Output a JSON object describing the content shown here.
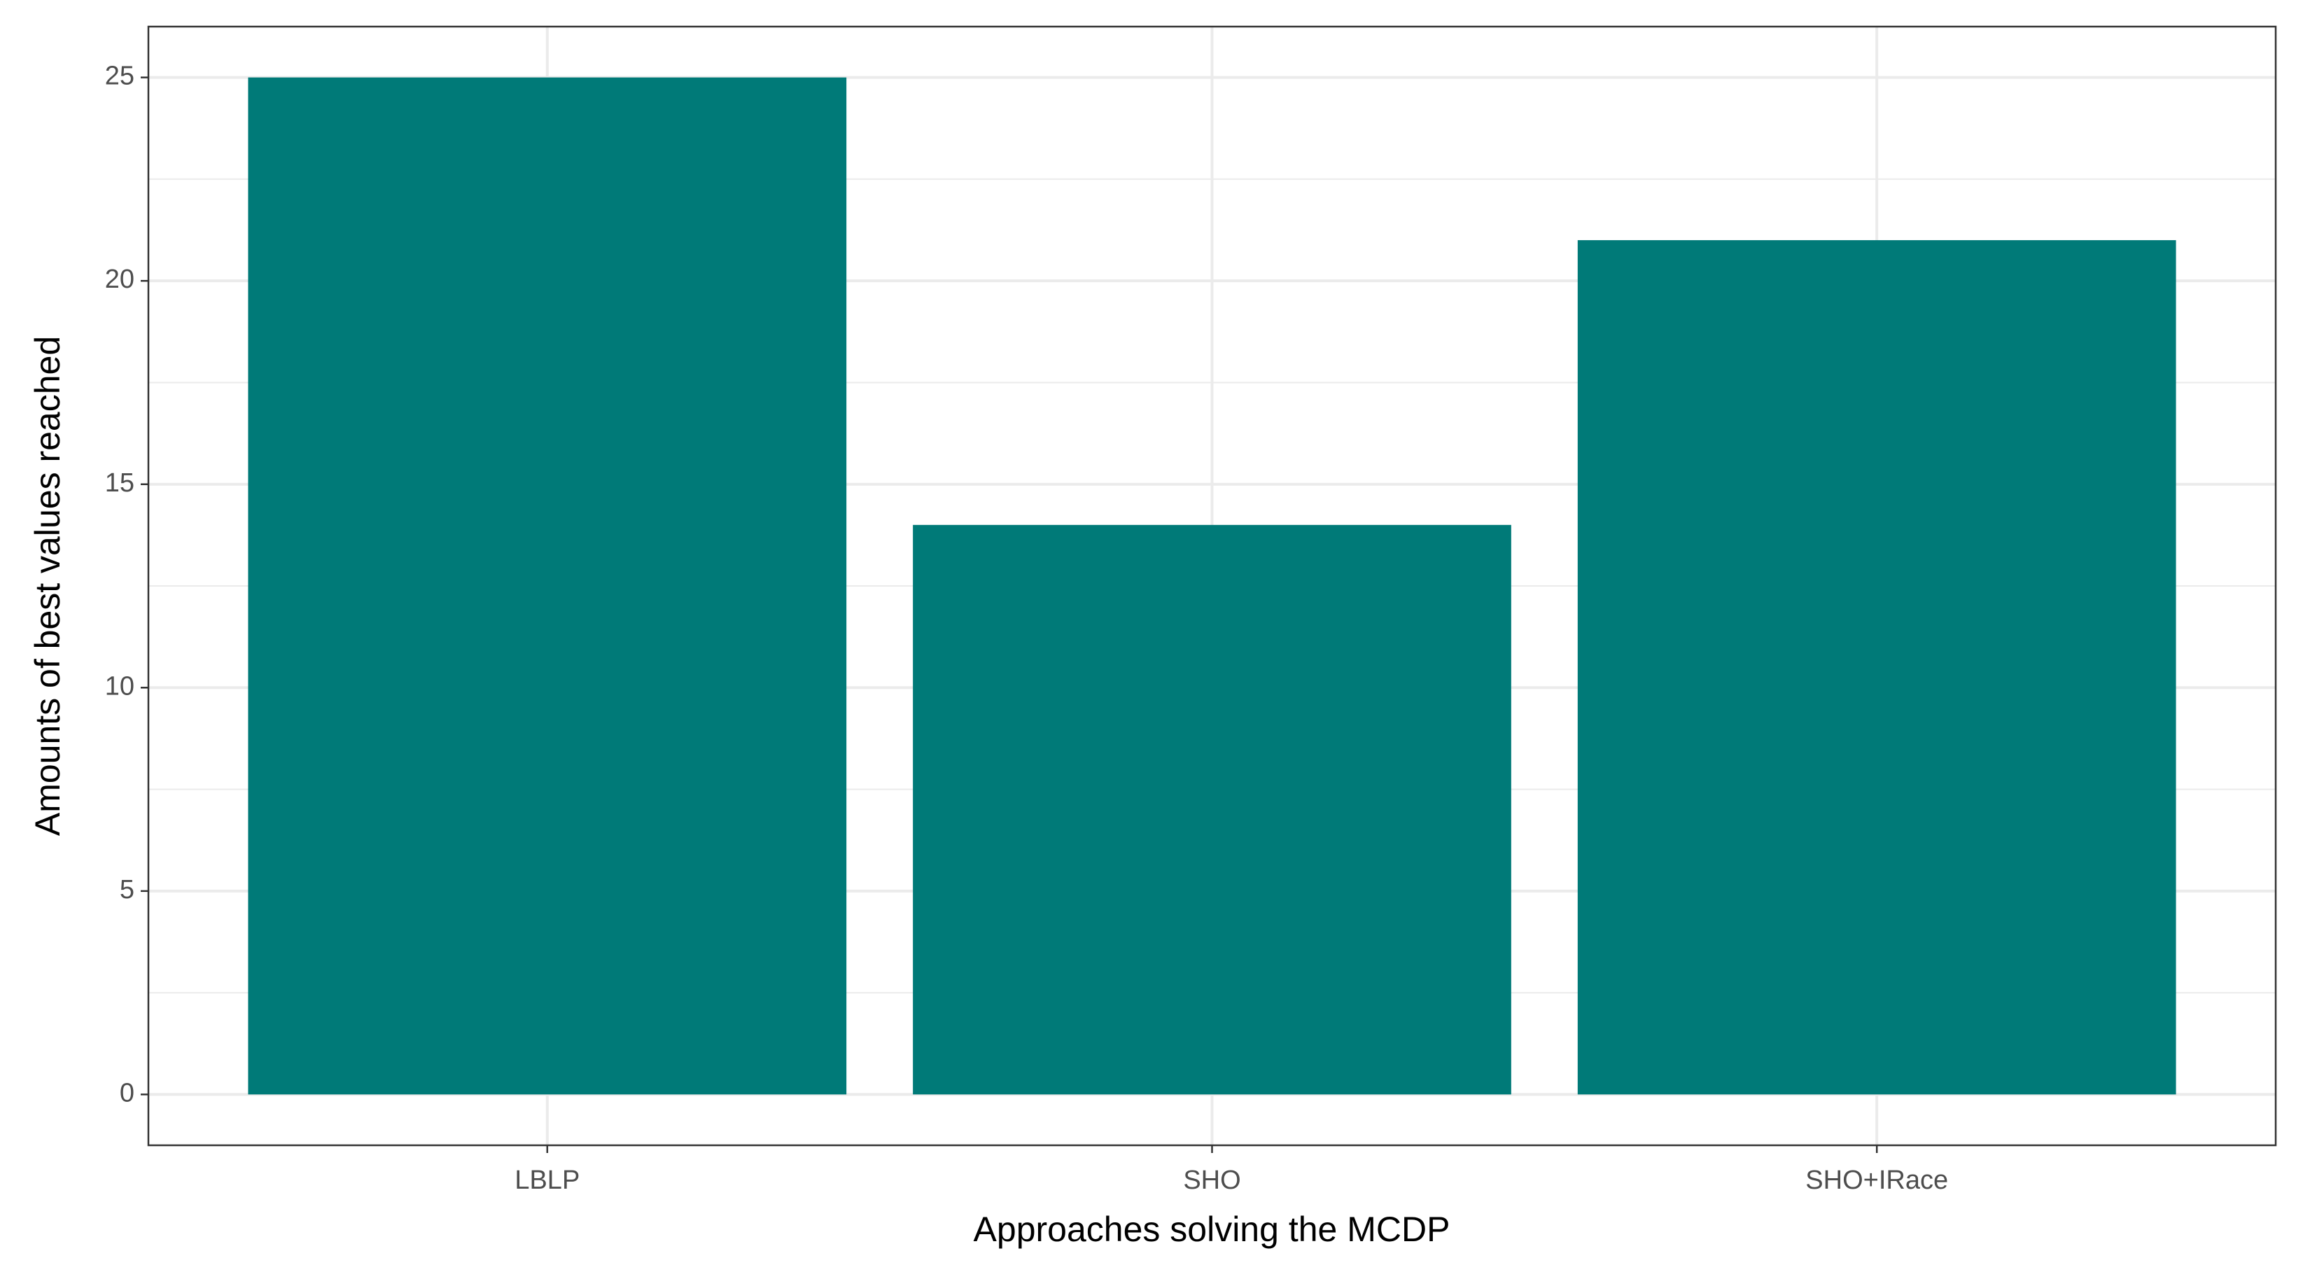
{
  "chart_data": {
    "type": "bar",
    "x_label": "Approaches solving the MCDP",
    "y_label": "Amounts of best values reached",
    "categories": [
      "LBLP",
      "SHO",
      "SHO+IRace"
    ],
    "values": [
      25,
      14,
      21
    ],
    "color": "#007a78",
    "ylim": [
      -1.25,
      26.25
    ],
    "yticks": [
      0,
      5,
      10,
      15,
      20,
      25
    ],
    "grid": true
  }
}
